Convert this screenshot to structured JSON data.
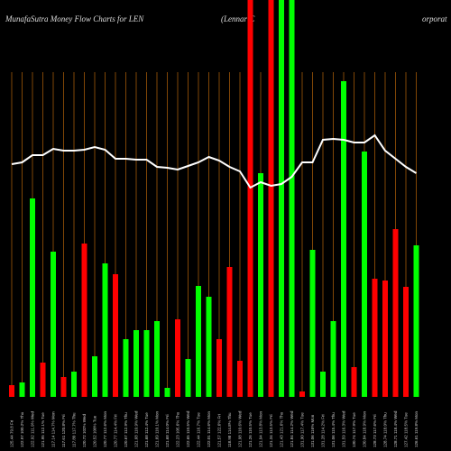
{
  "chart_data": {
    "type": "bar",
    "title": "MunafaSutra  Money Flow  Charts for LEN",
    "subtitle": "(Lennar C",
    "subtitle2": "orporat",
    "categories": [
      "125.44 79.8 Fri",
      "122.97 100.2% Thu",
      "122.92 111.9% Wed",
      "121.95 112.1% Tue",
      "117.14 114.7% Mon",
      "117.61 120.8% Fri",
      "117.80 117.7% Thu",
      "120.72 102% Wed",
      "120.52 100% Tue",
      "120.77 112.6% Mon",
      "120.77 114.4% Fri",
      "120.67 112.9% Thu",
      "121.68 110.9% Wed",
      "121.68 112.4% Tue",
      "121.69 110.1% Mon",
      "121.68 114.0% Fri",
      "122.23 105.6% Thu",
      "122.65 110.5% Wed",
      "122.44 116.7% Tue",
      "122.01 114.6% Mon",
      "121.57 122.6% Fri",
      "118.98 114.8% Thu",
      "121.98 110.6% Wed",
      "121.26 110.5% Tue",
      "121.94 113.8% Mon",
      "121.34 113.5% Fri",
      "121.43 121.6% Thu",
      "121.84 114.2% Wed",
      "131.90 117.4% Tue",
      "131.06 116% Mon",
      "131.28 114.2% Fri",
      "131.06 115.4% Thu",
      "131.59 116.3% Wed",
      "130.74 117.9% Tue",
      "130.84 118.9% Mon",
      "128.73 117.6% Fri",
      "128.74 118.0% Thu",
      "128.71 118.4% Wed",
      "127.42 118.5% Tue",
      "126.61 119.8% Mon"
    ],
    "series": [
      {
        "name": "flow",
        "colors": [
          "#ff0000",
          "#00ff00",
          "#00ff00",
          "#ff0000",
          "#00ff00",
          "#ff0000",
          "#00ff00",
          "#ff0000",
          "#00ff00",
          "#00ff00",
          "#ff0000",
          "#00ff00",
          "#00ff00",
          "#00ff00",
          "#00ff00",
          "#00ff00",
          "#ff0000",
          "#00ff00",
          "#00ff00",
          "#00ff00",
          "#ff0000",
          "#ff0000",
          "#ff0000",
          "#ff0000",
          "#00ff00",
          "#ff0000",
          "#00ff00",
          "#00ff00",
          "#ff0000",
          "#00ff00",
          "#00ff00",
          "#00ff00",
          "#00ff00",
          "#ff0000",
          "#00ff00",
          "#ff0000",
          "#ff0000",
          "#ff0000",
          "#ff0000",
          "#00ff00"
        ],
        "values": [
          13,
          16,
          220,
          38,
          161,
          22,
          28,
          170,
          45,
          148,
          136,
          64,
          74,
          74,
          84,
          10,
          86,
          42,
          123,
          111,
          64,
          144,
          40,
          460,
          248,
          460,
          460,
          460,
          6,
          163,
          28,
          84,
          350,
          33,
          272,
          131,
          129,
          186,
          122,
          168
        ]
      },
      {
        "name": "price",
        "color": "#ffffff",
        "values": [
          258,
          260,
          268,
          268,
          275,
          273,
          273,
          274,
          277,
          274,
          264,
          264,
          263,
          263,
          255,
          254,
          252,
          256,
          260,
          266,
          262,
          255,
          250,
          232,
          238,
          234,
          236,
          244,
          260,
          260,
          285,
          286,
          285,
          282,
          282,
          290,
          273,
          264,
          255,
          248
        ]
      }
    ],
    "ylim": [
      0,
      440
    ]
  }
}
